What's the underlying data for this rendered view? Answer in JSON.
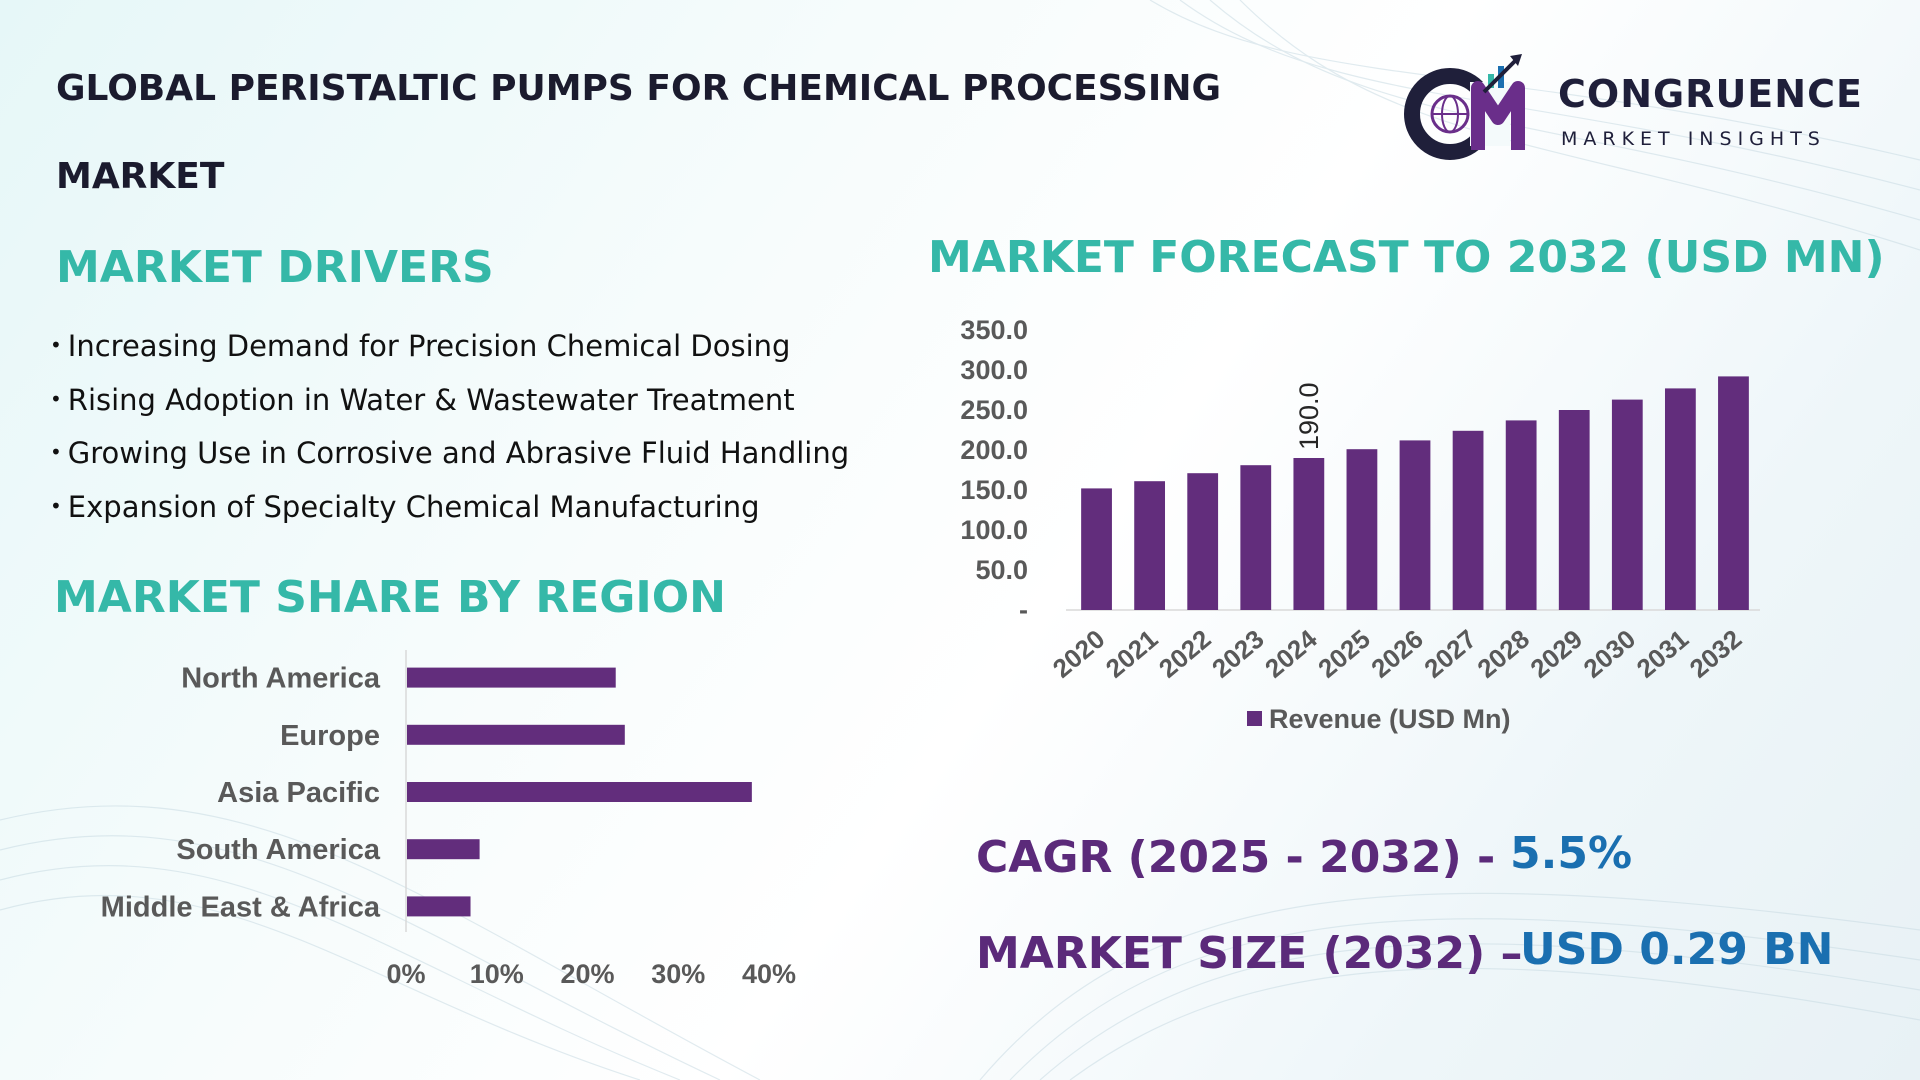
{
  "title": {
    "line1": "GLOBAL PERISTALTIC PUMPS FOR CHEMICAL PROCESSING",
    "line2": "MARKET"
  },
  "logo": {
    "name": "CONGRUENCE",
    "tagline": "MARKET INSIGHTS",
    "mark_letters": "CM",
    "colors": {
      "dark": "#1f1f3a",
      "accent": "#6a2e8a",
      "teal": "#35b8a8"
    }
  },
  "drivers": {
    "heading": "MARKET DRIVERS",
    "bullet": "•",
    "items": [
      "Increasing Demand for Precision Chemical Dosing",
      "Rising Adoption in Water & Wastewater Treatment",
      "Growing Use in Corrosive and Abrasive Fluid Handling",
      "Expansion of Specialty Chemical Manufacturing"
    ]
  },
  "region": {
    "heading": "MARKET SHARE BY REGION"
  },
  "forecast": {
    "heading": "MARKET FORECAST TO 2032 (USD MN)"
  },
  "stats": {
    "cagr_label": "CAGR (2025 - 2032) -",
    "cagr_value": "5.5%",
    "size_label": "MARKET SIZE (2032) –",
    "size_value": "USD 0.29 BN"
  },
  "colors": {
    "heading_teal": "#35b8a8",
    "bar_purple": "#622d7c",
    "stat_purple": "#5b2a7a",
    "stat_blue": "#1a6fb0",
    "axis_text": "#595959"
  },
  "chart_data": [
    {
      "type": "bar",
      "orientation": "vertical",
      "categories": [
        "2020",
        "2021",
        "2022",
        "2023",
        "2024",
        "2025",
        "2026",
        "2027",
        "2028",
        "2029",
        "2030",
        "2031",
        "2032"
      ],
      "series": [
        {
          "name": "Revenue (USD Mn)",
          "values": [
            152,
            161,
            171,
            181,
            190,
            201,
            212,
            224,
            237,
            250,
            263,
            277,
            292
          ]
        }
      ],
      "y_ticks": [
        "-",
        "50.0",
        "100.0",
        "150.0",
        "200.0",
        "250.0",
        "300.0",
        "350.0"
      ],
      "ylim": [
        0,
        350
      ],
      "data_labels": [
        {
          "category": "2024",
          "text": "190.0"
        }
      ],
      "legend": "bottom",
      "grid": false
    },
    {
      "type": "bar",
      "orientation": "horizontal",
      "categories": [
        "North America",
        "Europe",
        "Asia Pacific",
        "South America",
        "Middle East & Africa"
      ],
      "values": [
        23,
        24,
        38,
        8,
        7
      ],
      "x_ticks": [
        "0%",
        "10%",
        "20%",
        "30%",
        "40%"
      ],
      "xlim": [
        0,
        40
      ],
      "grid": false
    }
  ]
}
